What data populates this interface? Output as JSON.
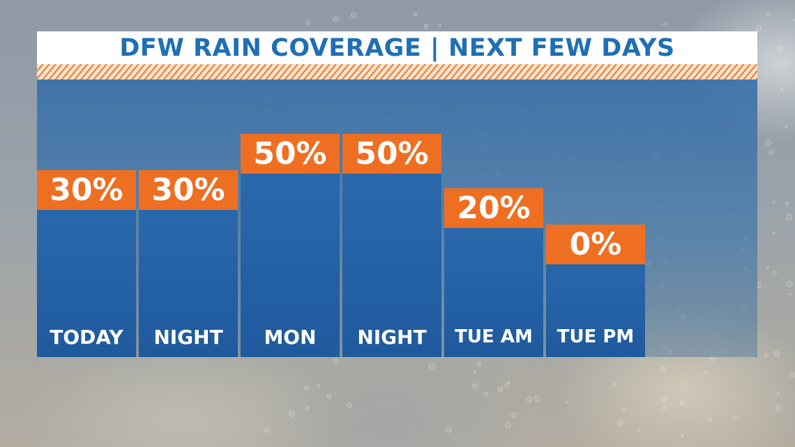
{
  "title": "DFW RAIN COVERAGE | NEXT FEW DAYS",
  "colors": {
    "title_text": "#1f6fb4",
    "value_box": "#ef6f22",
    "bar": "#2465a8",
    "stripe": "#ef7a2a"
  },
  "chart_data": {
    "type": "bar",
    "title": "DFW RAIN COVERAGE | NEXT FEW DAYS",
    "categories": [
      "TODAY",
      "NIGHT",
      "MON",
      "NIGHT",
      "TUE AM",
      "TUE PM"
    ],
    "values": [
      30,
      30,
      50,
      50,
      20,
      0
    ],
    "value_labels": [
      "30%",
      "30%",
      "50%",
      "50%",
      "20%",
      "0%"
    ],
    "xlabel": "",
    "ylabel": "",
    "ylim": [
      0,
      100
    ],
    "grid": false,
    "legend": "none"
  }
}
